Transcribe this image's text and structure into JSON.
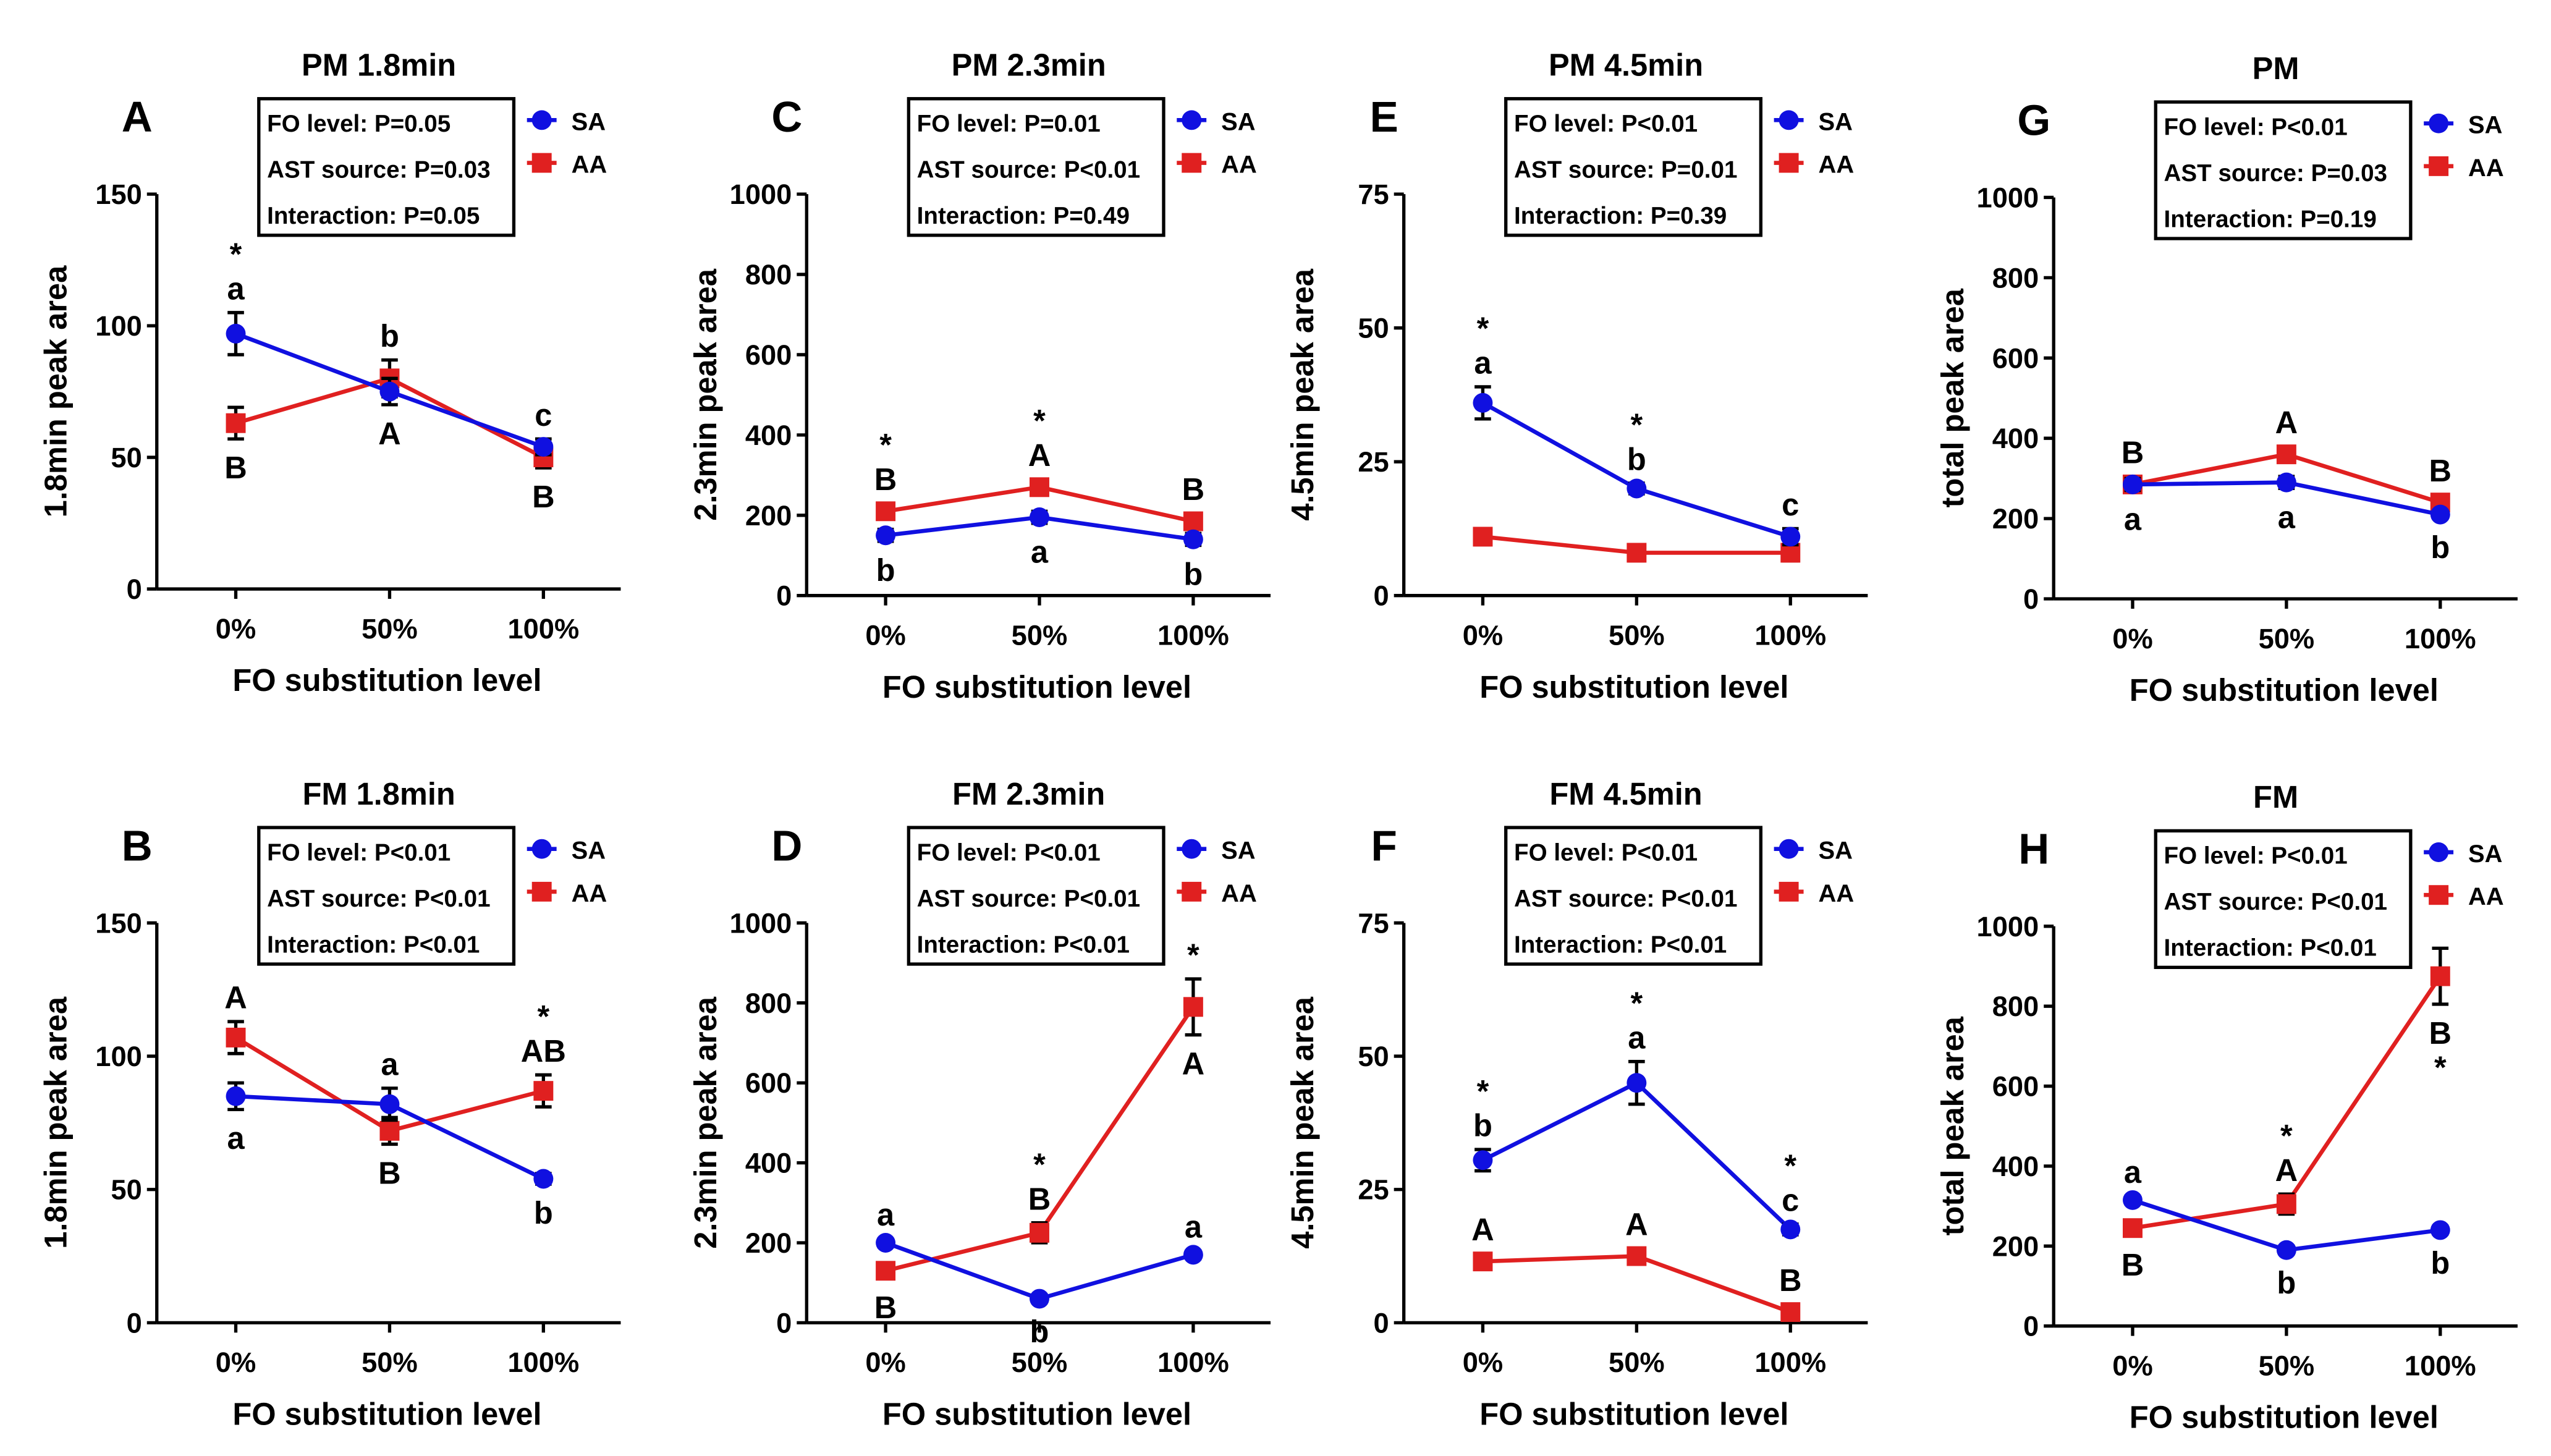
{
  "colors": {
    "SA": "#1010e0",
    "AA": "#e02020",
    "axis": "#000000"
  },
  "chart_data": [
    {
      "panel": "A",
      "type": "line",
      "title": "PM   1.8min",
      "xlabel": "FO substitution level",
      "ylabel": "1.8min peak area",
      "categories": [
        "0%",
        "50%",
        "100%"
      ],
      "ylim": [
        0,
        150
      ],
      "yticks": [
        0,
        50,
        100,
        150
      ],
      "stats": [
        "FO level: P=0.05",
        "AST source: P=0.03",
        "Interaction: P=0.05"
      ],
      "series": [
        {
          "name": "SA",
          "values": [
            97,
            75,
            54
          ],
          "errors": [
            8,
            5,
            3
          ]
        },
        {
          "name": "AA",
          "values": [
            63,
            80,
            50
          ],
          "errors": [
            6,
            7,
            4
          ]
        }
      ],
      "annotations": [
        {
          "cat": 0,
          "series": "SA",
          "pos": "above",
          "lines": [
            "*",
            "a"
          ]
        },
        {
          "cat": 0,
          "series": "AA",
          "pos": "below",
          "lines": [
            "B"
          ]
        },
        {
          "cat": 1,
          "series": "AA",
          "pos": "above",
          "lines": [
            "b"
          ]
        },
        {
          "cat": 1,
          "series": "SA",
          "pos": "below",
          "lines": [
            "A"
          ]
        },
        {
          "cat": 2,
          "series": "SA",
          "pos": "above",
          "lines": [
            "c"
          ]
        },
        {
          "cat": 2,
          "series": "AA",
          "pos": "below",
          "lines": [
            "B"
          ]
        }
      ]
    },
    {
      "panel": "B",
      "type": "line",
      "title": "FM   1.8min",
      "xlabel": "FO substitution level",
      "ylabel": "1.8min peak area",
      "categories": [
        "0%",
        "50%",
        "100%"
      ],
      "ylim": [
        0,
        150
      ],
      "yticks": [
        0,
        50,
        100,
        150
      ],
      "stats": [
        "FO level: P<0.01",
        "AST source: P<0.01",
        "Interaction: P<0.01"
      ],
      "series": [
        {
          "name": "SA",
          "values": [
            85,
            82,
            54
          ],
          "errors": [
            5,
            6,
            2
          ]
        },
        {
          "name": "AA",
          "values": [
            107,
            72,
            87
          ],
          "errors": [
            6,
            5,
            6
          ]
        }
      ],
      "annotations": [
        {
          "cat": 0,
          "series": "AA",
          "pos": "above",
          "lines": [
            "A"
          ]
        },
        {
          "cat": 0,
          "series": "SA",
          "pos": "below",
          "lines": [
            "a"
          ]
        },
        {
          "cat": 1,
          "series": "SA",
          "pos": "above",
          "lines": [
            "a"
          ]
        },
        {
          "cat": 1,
          "series": "AA",
          "pos": "below",
          "lines": [
            "B"
          ]
        },
        {
          "cat": 2,
          "series": "AA",
          "pos": "above",
          "lines": [
            "*",
            "AB"
          ]
        },
        {
          "cat": 2,
          "series": "SA",
          "pos": "below",
          "lines": [
            "b"
          ]
        }
      ]
    },
    {
      "panel": "C",
      "type": "line",
      "title": "PM   2.3min",
      "xlabel": "FO substitution level",
      "ylabel": "2.3min peak area",
      "categories": [
        "0%",
        "50%",
        "100%"
      ],
      "ylim": [
        0,
        1000
      ],
      "yticks": [
        0,
        200,
        400,
        600,
        800,
        1000
      ],
      "stats": [
        "FO level: P=0.01",
        "AST source: P<0.01",
        "Interaction: P=0.49"
      ],
      "series": [
        {
          "name": "SA",
          "values": [
            150,
            195,
            140
          ],
          "errors": [
            15,
            15,
            15
          ]
        },
        {
          "name": "AA",
          "values": [
            210,
            270,
            185
          ],
          "errors": [
            20,
            20,
            20
          ]
        }
      ],
      "annotations": [
        {
          "cat": 0,
          "series": "AA",
          "pos": "above",
          "lines": [
            "*",
            "B"
          ]
        },
        {
          "cat": 0,
          "series": "SA",
          "pos": "below",
          "lines": [
            "b"
          ]
        },
        {
          "cat": 1,
          "series": "AA",
          "pos": "above",
          "lines": [
            "*",
            "A"
          ]
        },
        {
          "cat": 1,
          "series": "SA",
          "pos": "below",
          "lines": [
            "a"
          ]
        },
        {
          "cat": 2,
          "series": "AA",
          "pos": "above",
          "lines": [
            "B"
          ]
        },
        {
          "cat": 2,
          "series": "SA",
          "pos": "below",
          "lines": [
            "b"
          ]
        }
      ]
    },
    {
      "panel": "D",
      "type": "line",
      "title": "FM   2.3min",
      "xlabel": "FO substitution level",
      "ylabel": "2.3min peak area",
      "categories": [
        "0%",
        "50%",
        "100%"
      ],
      "ylim": [
        0,
        1000
      ],
      "yticks": [
        0,
        200,
        400,
        600,
        800,
        1000
      ],
      "stats": [
        "FO level: P<0.01",
        "AST source: P<0.01",
        "Interaction: P<0.01"
      ],
      "series": [
        {
          "name": "SA",
          "values": [
            200,
            60,
            170
          ],
          "errors": [
            10,
            10,
            10
          ]
        },
        {
          "name": "AA",
          "values": [
            130,
            225,
            790
          ],
          "errors": [
            20,
            25,
            70
          ]
        }
      ],
      "annotations": [
        {
          "cat": 0,
          "series": "SA",
          "pos": "above",
          "lines": [
            "a"
          ]
        },
        {
          "cat": 0,
          "series": "AA",
          "pos": "below",
          "lines": [
            "B"
          ]
        },
        {
          "cat": 1,
          "series": "AA",
          "pos": "above",
          "lines": [
            "*",
            "B"
          ]
        },
        {
          "cat": 1,
          "series": "SA",
          "pos": "below",
          "lines": [
            "b"
          ]
        },
        {
          "cat": 2,
          "series": "AA",
          "pos": "above",
          "lines": [
            "*"
          ]
        },
        {
          "cat": 2,
          "series": "AA",
          "pos": "below",
          "lines": [
            "A"
          ]
        },
        {
          "cat": 2,
          "series": "SA",
          "pos": "above",
          "lines": [
            "a"
          ]
        }
      ]
    },
    {
      "panel": "E",
      "type": "line",
      "title": "PM   4.5min",
      "xlabel": "FO substitution level",
      "ylabel": "4.5min peak area",
      "categories": [
        "0%",
        "50%",
        "100%"
      ],
      "ylim": [
        0,
        75
      ],
      "yticks": [
        0,
        25,
        50,
        75
      ],
      "stats": [
        "FO level: P<0.01",
        "AST source: P=0.01",
        "Interaction: P=0.39"
      ],
      "series": [
        {
          "name": "SA",
          "values": [
            36,
            20,
            11
          ],
          "errors": [
            3,
            1,
            1.5
          ]
        },
        {
          "name": "AA",
          "values": [
            11,
            8,
            8
          ],
          "errors": [
            1.5,
            1.5,
            1.5
          ]
        }
      ],
      "annotations": [
        {
          "cat": 0,
          "series": "SA",
          "pos": "above",
          "lines": [
            "*",
            "a"
          ]
        },
        {
          "cat": 1,
          "series": "SA",
          "pos": "above",
          "lines": [
            "*",
            "b"
          ]
        },
        {
          "cat": 2,
          "series": "SA",
          "pos": "above",
          "lines": [
            "c"
          ]
        }
      ]
    },
    {
      "panel": "F",
      "type": "line",
      "title": "FM   4.5min",
      "xlabel": "FO substitution level",
      "ylabel": "4.5min peak area",
      "categories": [
        "0%",
        "50%",
        "100%"
      ],
      "ylim": [
        0,
        75
      ],
      "yticks": [
        0,
        25,
        50,
        75
      ],
      "stats": [
        "FO level: P<0.01",
        "AST source: P<0.01",
        "Interaction: P<0.01"
      ],
      "series": [
        {
          "name": "SA",
          "values": [
            30.5,
            45,
            17.5
          ],
          "errors": [
            2,
            4,
            1
          ]
        },
        {
          "name": "AA",
          "values": [
            11.5,
            12.5,
            2
          ],
          "errors": [
            1.5,
            1.5,
            1.5
          ]
        }
      ],
      "annotations": [
        {
          "cat": 0,
          "series": "SA",
          "pos": "above",
          "lines": [
            "*",
            "b"
          ]
        },
        {
          "cat": 0,
          "series": "AA",
          "pos": "above",
          "lines": [
            "A"
          ]
        },
        {
          "cat": 1,
          "series": "SA",
          "pos": "above",
          "lines": [
            "*",
            "a"
          ]
        },
        {
          "cat": 1,
          "series": "AA",
          "pos": "above",
          "lines": [
            "A"
          ]
        },
        {
          "cat": 2,
          "series": "SA",
          "pos": "above",
          "lines": [
            "*",
            "c"
          ]
        },
        {
          "cat": 2,
          "series": "AA",
          "pos": "above",
          "lines": [
            "B"
          ]
        }
      ]
    },
    {
      "panel": "G",
      "type": "line",
      "title": "PM",
      "xlabel": "FO substitution level",
      "ylabel": "total peak area",
      "categories": [
        "0%",
        "50%",
        "100%"
      ],
      "ylim": [
        0,
        1000
      ],
      "yticks": [
        0,
        200,
        400,
        600,
        800,
        1000
      ],
      "stats": [
        "FO level: P<0.01",
        "AST source: P=0.03",
        "Interaction: P=0.19"
      ],
      "series": [
        {
          "name": "SA",
          "values": [
            285,
            290,
            210
          ],
          "errors": [
            15,
            15,
            10
          ]
        },
        {
          "name": "AA",
          "values": [
            285,
            360,
            240
          ],
          "errors": [
            20,
            20,
            20
          ]
        }
      ],
      "annotations": [
        {
          "cat": 0,
          "series": "AA",
          "pos": "above",
          "lines": [
            "B"
          ]
        },
        {
          "cat": 0,
          "series": "SA",
          "pos": "below",
          "lines": [
            "a"
          ]
        },
        {
          "cat": 1,
          "series": "AA",
          "pos": "above",
          "lines": [
            "A"
          ]
        },
        {
          "cat": 1,
          "series": "SA",
          "pos": "below",
          "lines": [
            "a"
          ]
        },
        {
          "cat": 2,
          "series": "AA",
          "pos": "above",
          "lines": [
            "B"
          ]
        },
        {
          "cat": 2,
          "series": "SA",
          "pos": "below",
          "lines": [
            "b"
          ]
        }
      ]
    },
    {
      "panel": "H",
      "type": "line",
      "title": "FM",
      "xlabel": "FO substitution level",
      "ylabel": "total peak area",
      "categories": [
        "0%",
        "50%",
        "100%"
      ],
      "ylim": [
        0,
        1000
      ],
      "yticks": [
        0,
        200,
        400,
        600,
        800,
        1000
      ],
      "stats": [
        "FO level: P<0.01",
        "AST source: P<0.01",
        "Interaction: P<0.01"
      ],
      "series": [
        {
          "name": "SA",
          "values": [
            315,
            190,
            240
          ],
          "errors": [
            10,
            10,
            10
          ]
        },
        {
          "name": "AA",
          "values": [
            245,
            305,
            875
          ],
          "errors": [
            20,
            25,
            70
          ]
        }
      ],
      "annotations": [
        {
          "cat": 0,
          "series": "SA",
          "pos": "above",
          "lines": [
            "a"
          ]
        },
        {
          "cat": 0,
          "series": "AA",
          "pos": "below",
          "lines": [
            "B"
          ]
        },
        {
          "cat": 1,
          "series": "AA",
          "pos": "above",
          "lines": [
            "*",
            "A"
          ]
        },
        {
          "cat": 1,
          "series": "SA",
          "pos": "below",
          "lines": [
            "b"
          ]
        },
        {
          "cat": 2,
          "series": "AA",
          "pos": "below",
          "lines": [
            "B",
            "*"
          ]
        },
        {
          "cat": 2,
          "series": "SA",
          "pos": "below",
          "lines": [
            "b"
          ]
        }
      ]
    }
  ]
}
